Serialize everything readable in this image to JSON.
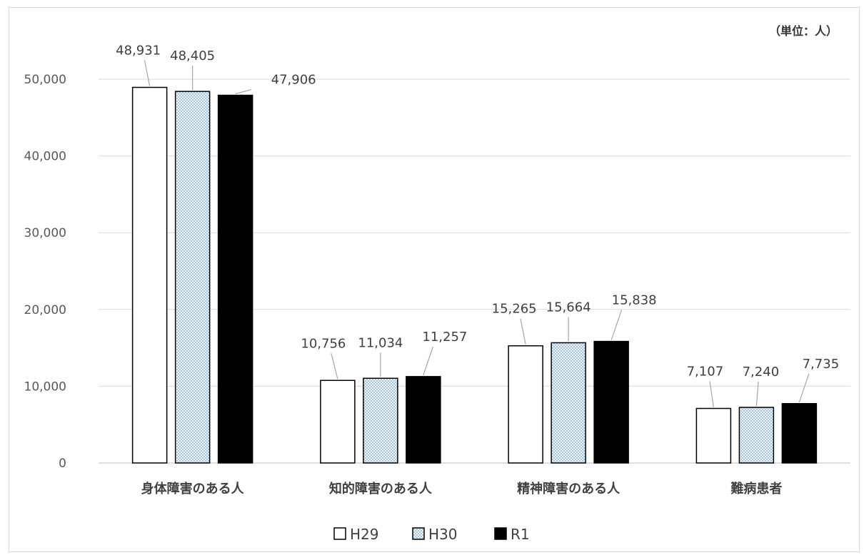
{
  "chart_data": {
    "type": "bar",
    "unit_label": "（単位：人）",
    "categories": [
      "身体障害のある人",
      "知的障害のある人",
      "精神障害のある人",
      "難病患者"
    ],
    "series": [
      {
        "name": "H29",
        "values": [
          48931,
          10756,
          15265,
          7107
        ],
        "fill": "#ffffff",
        "pattern": "none"
      },
      {
        "name": "H30",
        "values": [
          48405,
          11034,
          15664,
          7240
        ],
        "fill": "#dbe8f3",
        "pattern": "dots"
      },
      {
        "name": "R1",
        "values": [
          47906,
          11257,
          15838,
          7735
        ],
        "fill": "#000000",
        "pattern": "none"
      }
    ],
    "data_labels": [
      [
        "48,931",
        "10,756",
        "15,265",
        "7,107"
      ],
      [
        "48,405",
        "11,034",
        "15,664",
        "7,240"
      ],
      [
        "47,906",
        "11,257",
        "15,838",
        "7,735"
      ]
    ],
    "yticks": [
      0,
      10000,
      20000,
      30000,
      40000,
      50000
    ],
    "ytick_labels": [
      "0",
      "10,000",
      "20,000",
      "30,000",
      "40,000",
      "50,000"
    ],
    "ylim": [
      0,
      50000
    ],
    "grid": true,
    "legend_position": "bottom",
    "colors": {
      "gridline": "#d9d9d9",
      "axis": "#bfbfbf",
      "bar_outline": "#000000",
      "leader_line": "#a6a6a6"
    }
  }
}
